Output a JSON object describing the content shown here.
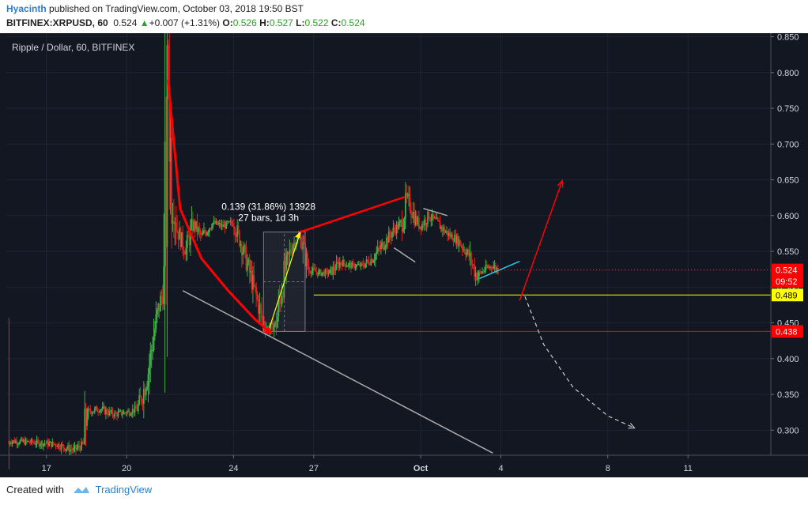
{
  "header": {
    "author": "Hyacinth",
    "published_text": " published on TradingView.com, October 03, 2018 19:50 BST",
    "symbol": "BITFINEX:XRPUSD, 60",
    "last": "0.524",
    "change": "+0.007 (+1.31%)",
    "o_label": "O:",
    "o_value": "0.526",
    "h_label": "H:",
    "h_value": "0.527",
    "l_label": "L:",
    "l_value": "0.522",
    "c_label": "C:",
    "c_value": "0.524"
  },
  "footer": {
    "created_with": "Created with",
    "brand": "TradingView"
  },
  "colors": {
    "background": "#131722",
    "axis_bg": "#131722",
    "up": "#3cb043",
    "down": "#e02020",
    "red_line": "#ff0000",
    "yellow": "#ffff00",
    "grey": "#aaaaaa",
    "cyan": "#22ccee"
  },
  "chart_data": {
    "type": "candlestick",
    "title": "Ripple / Dollar, 60, BITFINEX",
    "ylim": [
      0.265,
      0.855
    ],
    "y_ticks": [
      "0.850",
      "0.800",
      "0.750",
      "0.700",
      "0.650",
      "0.600",
      "0.550",
      "0.500",
      "0.450",
      "0.400",
      "0.350",
      "0.300"
    ],
    "x_ticks": [
      {
        "label": "17",
        "d": 17
      },
      {
        "label": "20",
        "d": 20
      },
      {
        "label": "24",
        "d": 24
      },
      {
        "label": "27",
        "d": 27
      },
      {
        "label": "Oct",
        "d": 31
      },
      {
        "label": "4",
        "d": 34
      },
      {
        "label": "8",
        "d": 38
      },
      {
        "label": "11",
        "d": 41
      }
    ],
    "xlim": [
      15.5,
      44.1
    ],
    "price_path": [
      [
        15.6,
        0.285
      ],
      [
        16.5,
        0.283
      ],
      [
        17.4,
        0.28
      ],
      [
        18.0,
        0.272
      ],
      [
        18.4,
        0.28
      ],
      [
        18.5,
        0.325
      ],
      [
        19.0,
        0.33
      ],
      [
        19.5,
        0.322
      ],
      [
        20.0,
        0.325
      ],
      [
        20.4,
        0.33
      ],
      [
        20.6,
        0.35
      ],
      [
        20.8,
        0.38
      ],
      [
        21.0,
        0.43
      ],
      [
        21.2,
        0.47
      ],
      [
        21.4,
        0.5
      ],
      [
        21.55,
        0.79
      ],
      [
        21.7,
        0.63
      ],
      [
        21.9,
        0.58
      ],
      [
        22.2,
        0.55
      ],
      [
        22.5,
        0.59
      ],
      [
        22.8,
        0.57
      ],
      [
        23.2,
        0.59
      ],
      [
        23.6,
        0.585
      ],
      [
        24.0,
        0.59
      ],
      [
        24.3,
        0.56
      ],
      [
        24.6,
        0.52
      ],
      [
        24.9,
        0.48
      ],
      [
        25.1,
        0.45
      ],
      [
        25.3,
        0.44
      ],
      [
        25.6,
        0.45
      ],
      [
        25.9,
        0.52
      ],
      [
        26.2,
        0.56
      ],
      [
        26.5,
        0.57
      ],
      [
        26.8,
        0.525
      ],
      [
        27.2,
        0.52
      ],
      [
        27.6,
        0.52
      ],
      [
        28.0,
        0.535
      ],
      [
        28.4,
        0.53
      ],
      [
        28.8,
        0.53
      ],
      [
        29.2,
        0.54
      ],
      [
        29.6,
        0.56
      ],
      [
        30.0,
        0.58
      ],
      [
        30.3,
        0.59
      ],
      [
        30.5,
        0.625
      ],
      [
        30.8,
        0.595
      ],
      [
        31.0,
        0.585
      ],
      [
        31.3,
        0.6
      ],
      [
        31.6,
        0.59
      ],
      [
        32.0,
        0.575
      ],
      [
        32.4,
        0.565
      ],
      [
        32.8,
        0.545
      ],
      [
        33.1,
        0.515
      ],
      [
        33.4,
        0.525
      ],
      [
        33.7,
        0.53
      ],
      [
        33.9,
        0.524
      ]
    ],
    "last_price": 0.524,
    "price_labels": [
      {
        "value": 0.524,
        "text": "0.524",
        "color": "#ff0000",
        "text_color": "#ffffff"
      },
      {
        "value": 0.508,
        "text": "09:52",
        "color": "#ff0000",
        "text_color": "#ffffff"
      },
      {
        "value": 0.489,
        "text": "0.489",
        "color": "#ffff00",
        "text_color": "#000000"
      },
      {
        "value": 0.438,
        "text": "0.438",
        "color": "#ff0000",
        "text_color": "#ffffff"
      }
    ],
    "horizontal_lines": [
      {
        "value": 0.489,
        "x_start": 27.0,
        "color": "#ffff00"
      },
      {
        "value": 0.438,
        "x_start": 25.1,
        "color": "#ff0000"
      }
    ],
    "measure": {
      "x1": 25.3,
      "y1": 0.438,
      "x2": 26.5,
      "y2": 0.577,
      "line1": "0.139 (31.86%) 13928",
      "line2": "27 bars, 1d 3h"
    },
    "annotations": [
      {
        "kind": "curve",
        "color": "#ff0000",
        "points": [
          [
            21.55,
            0.79
          ],
          [
            22.0,
            0.61
          ],
          [
            22.8,
            0.54
          ],
          [
            23.8,
            0.495
          ],
          [
            24.8,
            0.455
          ],
          [
            25.3,
            0.439
          ]
        ]
      },
      {
        "kind": "line",
        "color": "#ff0000",
        "points": [
          [
            26.5,
            0.577
          ],
          [
            30.4,
            0.626
          ]
        ]
      },
      {
        "kind": "line",
        "color": "#aaaaaa",
        "points": [
          [
            22.1,
            0.495
          ],
          [
            33.7,
            0.268
          ]
        ]
      },
      {
        "kind": "line",
        "color": "#aaaaaa",
        "points": [
          [
            31.1,
            0.61
          ],
          [
            32.0,
            0.6
          ]
        ]
      },
      {
        "kind": "line",
        "color": "#aaaaaa",
        "points": [
          [
            30.0,
            0.555
          ],
          [
            30.8,
            0.535
          ]
        ]
      },
      {
        "kind": "line",
        "color": "#22ccee",
        "points": [
          [
            33.2,
            0.512
          ],
          [
            34.7,
            0.536
          ]
        ]
      },
      {
        "kind": "arrow",
        "color": "#ff0000",
        "points": [
          [
            34.7,
            0.481
          ],
          [
            36.3,
            0.649
          ]
        ]
      },
      {
        "kind": "dashed-arrow",
        "color": "#cccccc",
        "points": [
          [
            34.9,
            0.487
          ],
          [
            35.6,
            0.42
          ],
          [
            36.7,
            0.36
          ],
          [
            38.0,
            0.32
          ],
          [
            39.0,
            0.303
          ]
        ]
      }
    ]
  }
}
